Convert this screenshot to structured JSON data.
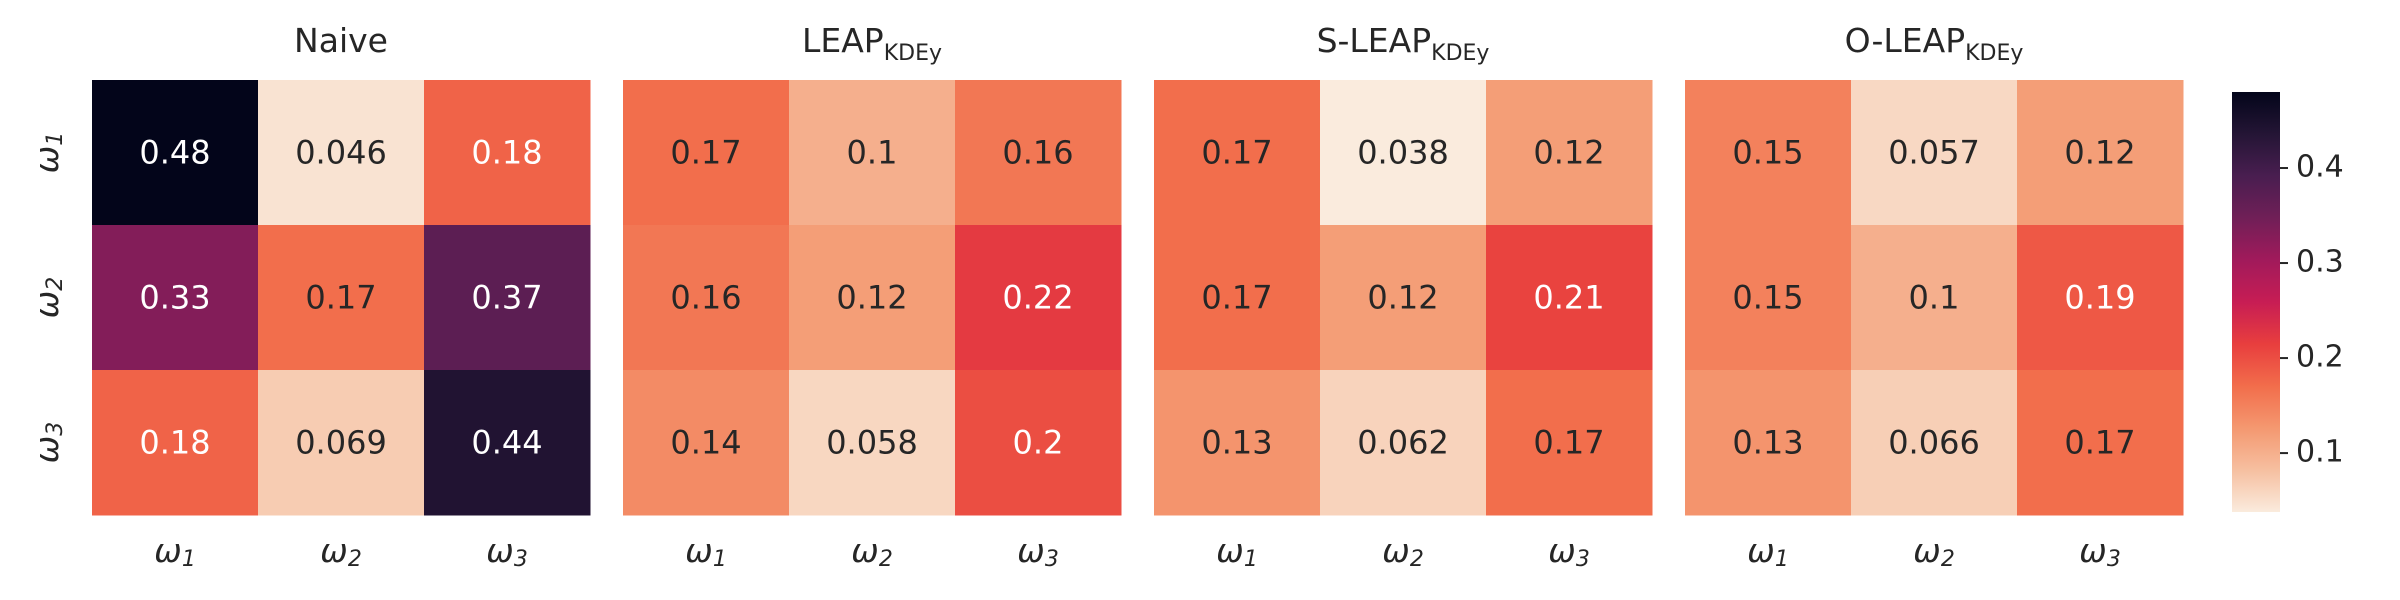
{
  "chart_data": [
    {
      "type": "heatmap",
      "title": "Naive",
      "title_sub": "",
      "x_tick_labels": [
        "ω1",
        "ω2",
        "ω3"
      ],
      "y_tick_labels": [
        "ω1",
        "ω2",
        "ω3"
      ],
      "values": [
        [
          0.48,
          0.046,
          0.18
        ],
        [
          0.33,
          0.17,
          0.37
        ],
        [
          0.18,
          0.069,
          0.44
        ]
      ],
      "cell_labels": [
        [
          "0.48",
          "0.046",
          "0.18"
        ],
        [
          "0.33",
          "0.17",
          "0.37"
        ],
        [
          "0.18",
          "0.069",
          "0.44"
        ]
      ]
    },
    {
      "type": "heatmap",
      "title": "LEAP",
      "title_sub": "KDEy",
      "x_tick_labels": [
        "ω1",
        "ω2",
        "ω3"
      ],
      "y_tick_labels": [],
      "values": [
        [
          0.17,
          0.1,
          0.16
        ],
        [
          0.16,
          0.12,
          0.22
        ],
        [
          0.14,
          0.058,
          0.2
        ]
      ],
      "cell_labels": [
        [
          "0.17",
          "0.1",
          "0.16"
        ],
        [
          "0.16",
          "0.12",
          "0.22"
        ],
        [
          "0.14",
          "0.058",
          "0.2"
        ]
      ]
    },
    {
      "type": "heatmap",
      "title": "S-LEAP",
      "title_sub": "KDEy",
      "x_tick_labels": [
        "ω1",
        "ω2",
        "ω3"
      ],
      "y_tick_labels": [],
      "values": [
        [
          0.17,
          0.038,
          0.12
        ],
        [
          0.17,
          0.12,
          0.21
        ],
        [
          0.13,
          0.062,
          0.17
        ]
      ],
      "cell_labels": [
        [
          "0.17",
          "0.038",
          "0.12"
        ],
        [
          "0.17",
          "0.12",
          "0.21"
        ],
        [
          "0.13",
          "0.062",
          "0.17"
        ]
      ]
    },
    {
      "type": "heatmap",
      "title": "O-LEAP",
      "title_sub": "KDEy",
      "x_tick_labels": [
        "ω1",
        "ω2",
        "ω3"
      ],
      "y_tick_labels": [],
      "values": [
        [
          0.15,
          0.057,
          0.12
        ],
        [
          0.15,
          0.1,
          0.19
        ],
        [
          0.13,
          0.066,
          0.17
        ]
      ],
      "cell_labels": [
        [
          "0.15",
          "0.057",
          "0.12"
        ],
        [
          "0.15",
          "0.1",
          "0.19"
        ],
        [
          "0.13",
          "0.066",
          "0.17"
        ]
      ]
    }
  ],
  "colorbar": {
    "vmin": 0.038,
    "vmax": 0.48,
    "ticks": [
      0.1,
      0.2,
      0.3,
      0.4
    ],
    "tick_labels": [
      "0.1",
      "0.2",
      "0.3",
      "0.4"
    ],
    "colormap": "rocket_r",
    "colormap_stops": [
      "#faebdd",
      "#f6bfa0",
      "#f49870",
      "#f26d4b",
      "#e83e3e",
      "#c71d54",
      "#a11a5b",
      "#701f57",
      "#491e50",
      "#241535",
      "#03051a"
    ]
  }
}
